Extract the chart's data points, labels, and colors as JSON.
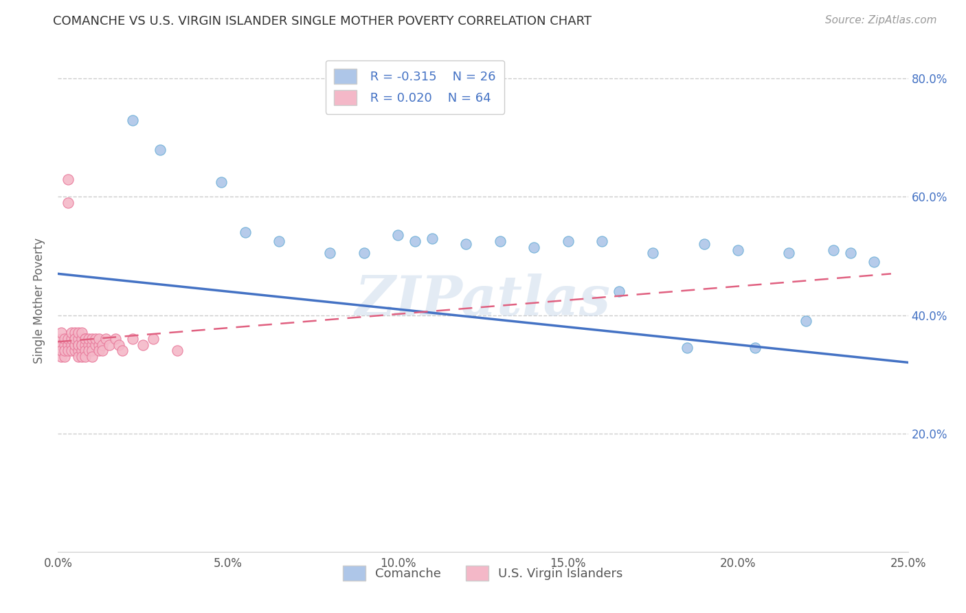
{
  "title": "COMANCHE VS U.S. VIRGIN ISLANDER SINGLE MOTHER POVERTY CORRELATION CHART",
  "source": "Source: ZipAtlas.com",
  "ylabel": "Single Mother Poverty",
  "xlim": [
    0.0,
    0.25
  ],
  "ylim": [
    0.0,
    0.85
  ],
  "xtick_labels": [
    "0.0%",
    "",
    "5.0%",
    "",
    "10.0%",
    "",
    "15.0%",
    "",
    "20.0%",
    "",
    "25.0%"
  ],
  "xtick_vals": [
    0.0,
    0.025,
    0.05,
    0.075,
    0.1,
    0.125,
    0.15,
    0.175,
    0.2,
    0.225,
    0.25
  ],
  "ytick_labels": [
    "20.0%",
    "40.0%",
    "60.0%",
    "80.0%"
  ],
  "ytick_vals": [
    0.2,
    0.4,
    0.6,
    0.8
  ],
  "comanche_color": "#aec6e8",
  "comanche_edge_color": "#6aaed6",
  "virgin_color": "#f4b8c8",
  "virgin_edge_color": "#e87799",
  "comanche_R": "-0.315",
  "comanche_N": "26",
  "virgin_R": "0.020",
  "virgin_N": "64",
  "line_comanche_color": "#4472c4",
  "line_virgin_color": "#e06080",
  "legend_label_comanche": "Comanche",
  "legend_label_virgin": "U.S. Virgin Islanders",
  "comanche_x": [
    0.022,
    0.03,
    0.048,
    0.055,
    0.065,
    0.08,
    0.09,
    0.1,
    0.105,
    0.11,
    0.12,
    0.13,
    0.14,
    0.15,
    0.16,
    0.165,
    0.175,
    0.185,
    0.19,
    0.2,
    0.205,
    0.215,
    0.22,
    0.228,
    0.233,
    0.24
  ],
  "comanche_y": [
    0.73,
    0.68,
    0.625,
    0.54,
    0.525,
    0.505,
    0.505,
    0.535,
    0.525,
    0.53,
    0.52,
    0.525,
    0.515,
    0.525,
    0.525,
    0.44,
    0.505,
    0.345,
    0.52,
    0.51,
    0.345,
    0.505,
    0.39,
    0.51,
    0.505,
    0.49
  ],
  "virgin_x": [
    0.001,
    0.001,
    0.001,
    0.001,
    0.001,
    0.002,
    0.002,
    0.002,
    0.002,
    0.003,
    0.003,
    0.003,
    0.003,
    0.003,
    0.004,
    0.004,
    0.004,
    0.004,
    0.005,
    0.005,
    0.005,
    0.005,
    0.005,
    0.005,
    0.006,
    0.006,
    0.006,
    0.006,
    0.006,
    0.006,
    0.007,
    0.007,
    0.007,
    0.007,
    0.007,
    0.007,
    0.008,
    0.008,
    0.008,
    0.008,
    0.008,
    0.009,
    0.009,
    0.009,
    0.01,
    0.01,
    0.01,
    0.01,
    0.011,
    0.011,
    0.012,
    0.012,
    0.012,
    0.013,
    0.013,
    0.014,
    0.015,
    0.017,
    0.018,
    0.019,
    0.022,
    0.025,
    0.028,
    0.035
  ],
  "virgin_y": [
    0.36,
    0.37,
    0.33,
    0.35,
    0.34,
    0.35,
    0.36,
    0.33,
    0.34,
    0.63,
    0.59,
    0.35,
    0.36,
    0.34,
    0.35,
    0.36,
    0.37,
    0.34,
    0.35,
    0.36,
    0.37,
    0.34,
    0.35,
    0.36,
    0.35,
    0.36,
    0.34,
    0.33,
    0.37,
    0.35,
    0.36,
    0.35,
    0.37,
    0.34,
    0.33,
    0.35,
    0.36,
    0.35,
    0.34,
    0.33,
    0.36,
    0.35,
    0.36,
    0.34,
    0.35,
    0.36,
    0.34,
    0.33,
    0.35,
    0.36,
    0.35,
    0.34,
    0.36,
    0.35,
    0.34,
    0.36,
    0.35,
    0.36,
    0.35,
    0.34,
    0.36,
    0.35,
    0.36,
    0.34
  ],
  "watermark": "ZIPatlas",
  "background_color": "#ffffff",
  "grid_color": "#cccccc",
  "right_tick_color": "#4472c4"
}
